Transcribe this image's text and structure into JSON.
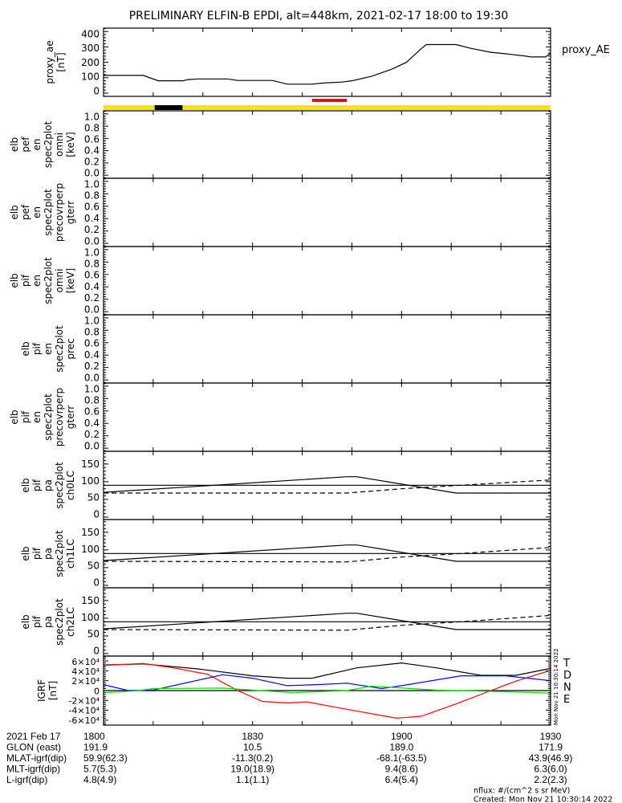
{
  "title": "PRELIMINARY ELFIN-B EPDI, alt=448km, 2021-02-17 18:00 to 19:30",
  "colors": {
    "yellow": "#FFE400",
    "red": "#FF0000",
    "blue": "#0000FF",
    "green": "#00E000",
    "black": "#000000"
  },
  "chart_data": [
    {
      "type": "line",
      "id": "proxy_ae",
      "ylabel_lines": [
        "proxy_ae",
        "[nT]"
      ],
      "legend": "proxy_AE",
      "ylim": [
        -21,
        422
      ],
      "yticks": [
        0,
        100,
        200,
        300,
        400
      ],
      "ytick_labels": [
        "0",
        "100",
        "200",
        "300",
        "400"
      ],
      "series": [
        {
          "name": "proxy_AE",
          "color": "#000000",
          "x": [
            0,
            8,
            11,
            16,
            17,
            19,
            25,
            27,
            34,
            37,
            42,
            44,
            48,
            50,
            54,
            58,
            61,
            64,
            65,
            71,
            74,
            78,
            81,
            85,
            86,
            89,
            90
          ],
          "y": [
            115,
            115,
            80,
            80,
            88,
            92,
            92,
            82,
            82,
            58,
            58,
            65,
            72,
            80,
            110,
            155,
            200,
            290,
            315,
            315,
            290,
            265,
            255,
            240,
            235,
            235,
            260
          ]
        }
      ]
    },
    {
      "type": "heatmap",
      "id": "pef_en_omni",
      "ylabel_lines": [
        "elb",
        "pef",
        "en",
        "spec2plot",
        "omni",
        "[keV]"
      ],
      "ylim": [
        -0.05,
        1.05
      ],
      "yticks": [
        0,
        0.2,
        0.4,
        0.6,
        0.8,
        1.0
      ],
      "ytick_labels": [
        "0.0",
        "0.2",
        "0.4",
        "0.6",
        "0.8",
        "1.0"
      ],
      "series": []
    },
    {
      "type": "heatmap",
      "id": "pef_en_precovrperp",
      "ylabel_lines": [
        "elb",
        "pef",
        "en",
        "spec2plot",
        "precovrperp",
        "gterr"
      ],
      "ylim": [
        -0.05,
        1.05
      ],
      "yticks": [
        0,
        0.2,
        0.4,
        0.6,
        0.8,
        1.0
      ],
      "ytick_labels": [
        "0.0",
        "0.2",
        "0.4",
        "0.6",
        "0.8",
        "1.0"
      ],
      "series": []
    },
    {
      "type": "heatmap",
      "id": "pif_en_omni",
      "ylabel_lines": [
        "elb",
        "pif",
        "en",
        "spec2plot",
        "omni",
        "[keV]"
      ],
      "ylim": [
        -0.05,
        1.05
      ],
      "yticks": [
        0,
        0.2,
        0.4,
        0.6,
        0.8,
        1.0
      ],
      "ytick_labels": [
        "0.0",
        "0.2",
        "0.4",
        "0.6",
        "0.8",
        "1.0"
      ],
      "series": []
    },
    {
      "type": "heatmap",
      "id": "pif_en_prec",
      "ylabel_lines": [
        "elb",
        "pif",
        "en",
        "spec2plot",
        "prec"
      ],
      "ylim": [
        -0.05,
        1.05
      ],
      "yticks": [
        0,
        0.2,
        0.4,
        0.6,
        0.8,
        1.0
      ],
      "ytick_labels": [
        "0.0",
        "0.2",
        "0.4",
        "0.6",
        "0.8",
        "1.0"
      ],
      "series": []
    },
    {
      "type": "heatmap",
      "id": "pif_en_precovrperp",
      "ylabel_lines": [
        "elb",
        "pif",
        "en",
        "spec2plot",
        "precovrperp",
        "gterr"
      ],
      "ylim": [
        -0.05,
        1.05
      ],
      "yticks": [
        0,
        0.2,
        0.4,
        0.6,
        0.8,
        1.0
      ],
      "ytick_labels": [
        "0.0",
        "0.2",
        "0.4",
        "0.6",
        "0.8",
        "1.0"
      ],
      "series": []
    },
    {
      "type": "line",
      "id": "pa_ch0LC",
      "ylabel_lines": [
        "elb",
        "pif",
        "pa",
        "spec2plot",
        "ch0LC"
      ],
      "ylim": [
        -7,
        186
      ],
      "yticks": [
        0,
        50,
        100,
        150
      ],
      "ytick_labels": [
        "0",
        "50",
        "100",
        "150"
      ],
      "series": [
        {
          "name": "90deg",
          "color": "#000000",
          "dash": false,
          "x": [
            0,
            90
          ],
          "y": [
            90,
            90
          ]
        },
        {
          "name": "losscone",
          "color": "#000000",
          "dash": false,
          "x": [
            0,
            49,
            51,
            71,
            90
          ],
          "y": [
            70,
            114,
            114,
            68,
            68
          ]
        },
        {
          "name": "antilosscone",
          "color": "#000000",
          "dash": true,
          "x": [
            0,
            49,
            60,
            72,
            90
          ],
          "y": [
            68,
            68,
            80,
            90,
            105
          ]
        }
      ]
    },
    {
      "type": "line",
      "id": "pa_ch1LC",
      "ylabel_lines": [
        "elb",
        "pif",
        "pa",
        "spec2plot",
        "ch1LC"
      ],
      "ylim": [
        -7,
        186
      ],
      "yticks": [
        0,
        50,
        100,
        150
      ],
      "ytick_labels": [
        "0",
        "50",
        "100",
        "150"
      ],
      "series": [
        {
          "name": "90deg",
          "color": "#000000",
          "dash": false,
          "x": [
            0,
            90
          ],
          "y": [
            90,
            90
          ]
        },
        {
          "name": "losscone",
          "color": "#000000",
          "dash": false,
          "x": [
            0,
            49,
            51,
            71,
            90
          ],
          "y": [
            70,
            114,
            114,
            68,
            68
          ]
        },
        {
          "name": "antilosscone",
          "color": "#000000",
          "dash": true,
          "x": [
            0,
            49,
            60,
            72,
            90
          ],
          "y": [
            68,
            66,
            80,
            90,
            107
          ]
        }
      ]
    },
    {
      "type": "line",
      "id": "pa_ch2LC",
      "ylabel_lines": [
        "elb",
        "pif",
        "pa",
        "spec2plot",
        "ch2LC"
      ],
      "ylim": [
        -7,
        186
      ],
      "yticks": [
        0,
        50,
        100,
        150
      ],
      "ytick_labels": [
        "0",
        "50",
        "100",
        "150"
      ],
      "series": [
        {
          "name": "90deg",
          "color": "#000000",
          "dash": false,
          "x": [
            0,
            90
          ],
          "y": [
            90,
            90
          ]
        },
        {
          "name": "losscone",
          "color": "#000000",
          "dash": false,
          "x": [
            0,
            49,
            51,
            71,
            90
          ],
          "y": [
            70,
            114,
            114,
            68,
            68
          ]
        },
        {
          "name": "antilosscone",
          "color": "#000000",
          "dash": true,
          "x": [
            0,
            49,
            60,
            72,
            90
          ],
          "y": [
            68,
            66,
            80,
            90,
            108
          ]
        }
      ]
    },
    {
      "type": "line",
      "id": "igrf",
      "ylabel_lines": [
        "IGRF",
        "[nT]"
      ],
      "ylim": [
        -70000,
        70000
      ],
      "yticks": [
        -60000,
        -40000,
        -20000,
        0,
        20000,
        40000,
        60000
      ],
      "ytick_labels": [
        "-6×10⁴",
        "-4×10⁴",
        "-2×10⁴",
        "0",
        "2×10⁴",
        "4×10⁴",
        "6×10⁴"
      ],
      "legend_labels": [
        "T",
        "D",
        "N",
        "E"
      ],
      "series": [
        {
          "name": "zero",
          "color": "#000000",
          "x": [
            0,
            90
          ],
          "y": [
            0,
            0
          ]
        },
        {
          "name": "T",
          "color": "#000000",
          "x": [
            0,
            8,
            19,
            30,
            37,
            42,
            51,
            60,
            67,
            76,
            83,
            90
          ],
          "y": [
            52000,
            54000,
            44000,
            30000,
            25000,
            25000,
            46000,
            56000,
            46000,
            31000,
            31000,
            45000
          ]
        },
        {
          "name": "D",
          "color": "#FF0000",
          "x": [
            0,
            8,
            14,
            21,
            27,
            32,
            37,
            41,
            49,
            59,
            64,
            71,
            78,
            83,
            90
          ],
          "y": [
            51000,
            55000,
            46000,
            33000,
            0,
            -22000,
            -25000,
            -23000,
            -38000,
            -56000,
            -52000,
            -27000,
            0,
            19000,
            41000
          ]
        },
        {
          "name": "N",
          "color": "#0000FF",
          "x": [
            0,
            5,
            10,
            24,
            30,
            37,
            43,
            49,
            56,
            60,
            72,
            81,
            90
          ],
          "y": [
            12000,
            0,
            1000,
            32000,
            25000,
            10000,
            12000,
            15000,
            4000,
            10000,
            30000,
            30000,
            20000
          ]
        },
        {
          "name": "E",
          "color": "#00E000",
          "x": [
            0,
            3,
            7,
            10,
            24,
            30,
            38,
            49,
            54,
            67,
            72,
            83,
            90
          ],
          "y": [
            -4000,
            -3000,
            0,
            4000,
            5000,
            1000,
            -4000,
            0,
            9000,
            1000,
            0,
            -3000,
            -5000
          ]
        }
      ]
    }
  ],
  "xaxis": {
    "range_minutes": [
      0,
      90
    ],
    "tick_interval_minutes": 10
  },
  "status_bars": {
    "fgm_red": [
      42,
      49
    ],
    "epd_black": [
      10.3,
      15.9
    ]
  },
  "ephemeris": {
    "rows": [
      {
        "label": "2021 Feb 17",
        "values": [
          "1800",
          "1830",
          "1900",
          "1930"
        ]
      },
      {
        "label": "GLON (east)",
        "values": [
          "191.9",
          "10.5",
          "189.0",
          "171.9"
        ]
      },
      {
        "label": "MLAT-igrf(dip)",
        "values": [
          "59.9(62.3)",
          "-11.3(0.2)",
          "-68.1(-63.5)",
          "43.9(46.9)"
        ]
      },
      {
        "label": "MLT-igrf(dip)",
        "values": [
          "5.7(5.3)",
          "19.0(18.9)",
          "9.4(8.6)",
          "6.3(6.0)"
        ]
      },
      {
        "label": "L-igrf(dip)",
        "values": [
          "4.8(4.9)",
          "1.1(1.1)",
          "6.4(5.4)",
          "2.2(2.3)"
        ]
      }
    ],
    "value_minutes": [
      0,
      30,
      60,
      90
    ]
  },
  "footer": {
    "units": "nflux: #/(cm^2 s sr MeV)",
    "created": "Created: Mon Nov 21 10:30:14 2022",
    "side_stamp": "Mon Nov 21 10:30:14 2022"
  }
}
